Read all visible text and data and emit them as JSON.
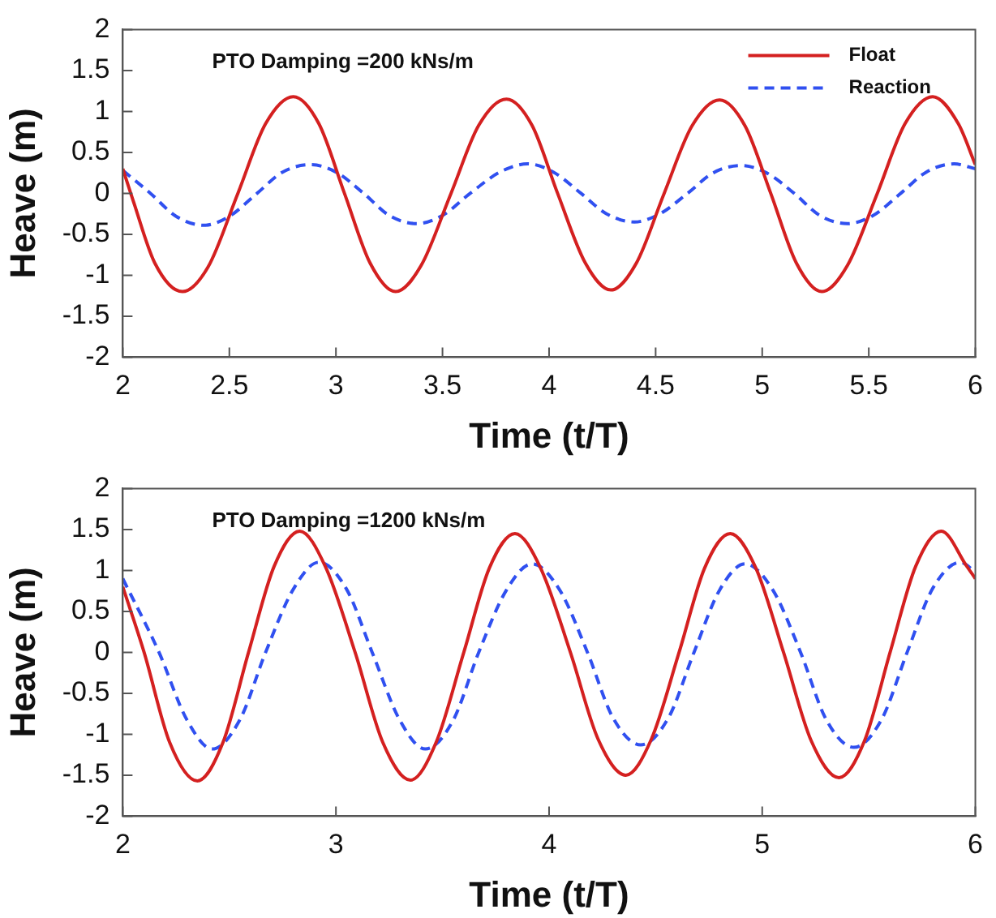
{
  "chart_data": [
    {
      "type": "line",
      "annotations": [
        "PTO Damping =200 kNs/m"
      ],
      "xlabel": "Time (t/T)",
      "ylabel": "Heave (m)",
      "xlim": [
        2,
        6
      ],
      "xticks": [
        2,
        2.5,
        3,
        3.5,
        4,
        4.5,
        5,
        5.5,
        6
      ],
      "ylim": [
        -2,
        2
      ],
      "yticks": [
        -2,
        -1.5,
        -1,
        -0.5,
        0,
        0.5,
        1,
        1.5,
        2
      ],
      "grid": false,
      "legend": "top right",
      "marker": "none",
      "series": [
        {
          "name": "Float",
          "color": "#d42020",
          "line_style": "solid",
          "x": [
            2.0,
            2.05,
            2.15,
            2.28,
            2.4,
            2.54,
            2.67,
            2.8,
            2.92,
            3.04,
            3.16,
            3.28,
            3.4,
            3.54,
            3.67,
            3.8,
            3.92,
            4.04,
            4.17,
            4.29,
            4.41,
            4.54,
            4.67,
            4.8,
            4.92,
            5.04,
            5.16,
            5.28,
            5.4,
            5.54,
            5.67,
            5.8,
            5.92,
            6.0
          ],
          "values": [
            0.3,
            -0.1,
            -0.85,
            -1.2,
            -0.9,
            0,
            0.85,
            1.18,
            0.85,
            0,
            -0.85,
            -1.2,
            -0.88,
            0,
            0.83,
            1.15,
            0.83,
            0,
            -0.85,
            -1.18,
            -0.85,
            0,
            0.82,
            1.14,
            0.82,
            0,
            -0.85,
            -1.2,
            -0.88,
            0,
            0.85,
            1.18,
            0.85,
            0.35
          ]
        },
        {
          "name": "Reaction",
          "color": "#3050f0",
          "line_style": "dashed",
          "x": [
            2.0,
            2.13,
            2.25,
            2.38,
            2.5,
            2.63,
            2.75,
            2.88,
            3.0,
            3.13,
            3.25,
            3.38,
            3.5,
            3.63,
            3.77,
            3.9,
            4.02,
            4.15,
            4.27,
            4.4,
            4.52,
            4.65,
            4.77,
            4.9,
            5.02,
            5.15,
            5.27,
            5.4,
            5.52,
            5.65,
            5.77,
            5.9,
            6.0
          ],
          "values": [
            0.28,
            0,
            -0.28,
            -0.39,
            -0.28,
            0,
            0.26,
            0.35,
            0.26,
            0,
            -0.27,
            -0.37,
            -0.27,
            0,
            0.26,
            0.36,
            0.26,
            0,
            -0.25,
            -0.35,
            -0.25,
            0,
            0.25,
            0.34,
            0.25,
            0,
            -0.27,
            -0.37,
            -0.27,
            0,
            0.26,
            0.36,
            0.3
          ]
        }
      ]
    },
    {
      "type": "line",
      "annotations": [
        "PTO Damping =1200 kNs/m"
      ],
      "xlabel": "Time (t/T)",
      "ylabel": "Heave (m)",
      "xlim": [
        2,
        6
      ],
      "xticks": [
        2,
        3,
        4,
        5,
        6
      ],
      "ylim": [
        -2,
        2
      ],
      "yticks": [
        -2,
        -1.5,
        -1,
        -0.5,
        0,
        0.5,
        1,
        1.5,
        2
      ],
      "grid": false,
      "legend": false,
      "marker": "none",
      "series": [
        {
          "color": "#d42020",
          "line_style": "solid",
          "x": [
            2.0,
            2.1,
            2.22,
            2.35,
            2.47,
            2.59,
            2.71,
            2.83,
            2.95,
            3.09,
            3.22,
            3.35,
            3.47,
            3.6,
            3.72,
            3.84,
            3.96,
            4.1,
            4.23,
            4.36,
            4.48,
            4.61,
            4.73,
            4.85,
            4.97,
            5.1,
            5.23,
            5.36,
            5.48,
            5.6,
            5.72,
            5.84,
            5.96,
            6.0
          ],
          "values": [
            0.8,
            0,
            -1.1,
            -1.57,
            -1.1,
            0,
            1.05,
            1.48,
            1.05,
            0,
            -1.1,
            -1.56,
            -1.1,
            0,
            1.03,
            1.45,
            1.03,
            0,
            -1.06,
            -1.5,
            -1.06,
            0,
            1.03,
            1.45,
            1.03,
            0,
            -1.08,
            -1.53,
            -1.08,
            0,
            1.05,
            1.48,
            1.05,
            0.9
          ]
        },
        {
          "color": "#3050f0",
          "line_style": "dashed",
          "x": [
            2.0,
            2.17,
            2.3,
            2.42,
            2.55,
            2.67,
            2.8,
            2.92,
            3.05,
            3.17,
            3.3,
            3.42,
            3.55,
            3.67,
            3.8,
            3.92,
            4.05,
            4.18,
            4.3,
            4.43,
            4.56,
            4.68,
            4.8,
            4.92,
            5.05,
            5.18,
            5.3,
            5.43,
            5.56,
            5.68,
            5.8,
            5.93,
            6.0
          ],
          "values": [
            0.9,
            0,
            -0.82,
            -1.18,
            -0.82,
            0,
            0.77,
            1.1,
            0.77,
            0,
            -0.83,
            -1.18,
            -0.83,
            0,
            0.76,
            1.08,
            0.76,
            0,
            -0.8,
            -1.13,
            -0.8,
            0,
            0.76,
            1.08,
            0.76,
            0,
            -0.82,
            -1.16,
            -0.82,
            0,
            0.78,
            1.1,
            0.98
          ]
        }
      ]
    }
  ]
}
